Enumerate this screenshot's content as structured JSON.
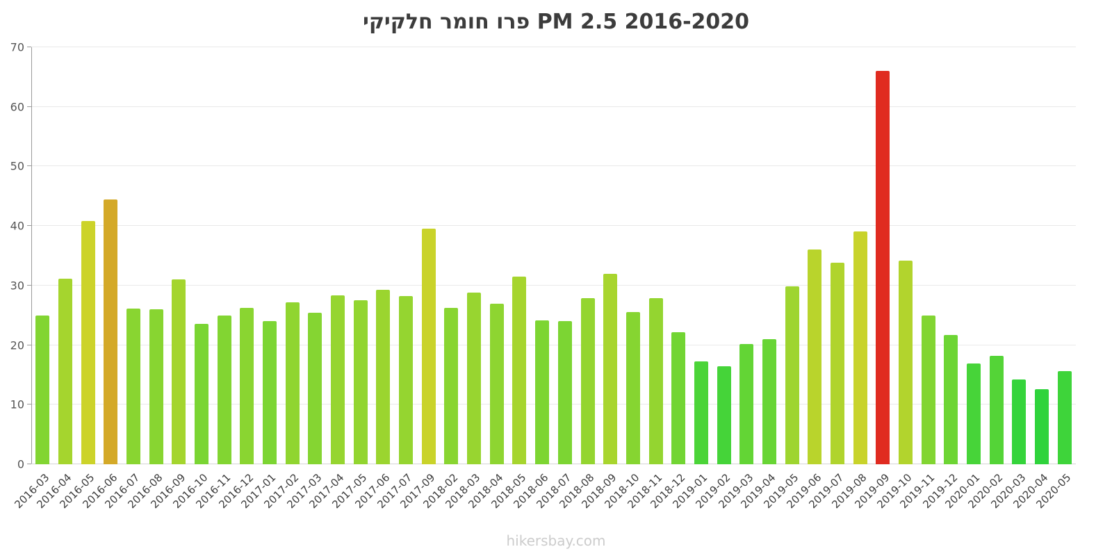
{
  "watermark": "hikersbay.com",
  "chart_data": {
    "type": "bar",
    "title": "פרו חומר חלקיקי PM 2.5 2016-2020",
    "xlabel": "",
    "ylabel": "",
    "ylim": [
      0,
      70
    ],
    "yticks": [
      0,
      10,
      20,
      30,
      40,
      50,
      60,
      70
    ],
    "grid": true,
    "legend": "none",
    "highlight_color": "#e02b20",
    "categories": [
      "2016-03",
      "2016-04",
      "2016-05",
      "2016-06",
      "2016-07",
      "2016-08",
      "2016-09",
      "2016-10",
      "2016-11",
      "2016-12",
      "2017-01",
      "2017-02",
      "2017-03",
      "2017-04",
      "2017-05",
      "2017-06",
      "2017-07",
      "2017-09",
      "2018-02",
      "2018-03",
      "2018-04",
      "2018-05",
      "2018-06",
      "2018-07",
      "2018-08",
      "2018-09",
      "2018-10",
      "2018-11",
      "2018-12",
      "2019-01",
      "2019-02",
      "2019-03",
      "2019-04",
      "2019-05",
      "2019-06",
      "2019-07",
      "2019-08",
      "2019-09",
      "2019-10",
      "2019-11",
      "2019-12",
      "2020-01",
      "2020-02",
      "2020-03",
      "2020-04",
      "2020-05"
    ],
    "values": [
      25.0,
      31.2,
      40.8,
      44.5,
      26.1,
      26.0,
      31.0,
      23.6,
      25.0,
      26.3,
      24.0,
      27.2,
      25.4,
      28.4,
      27.5,
      29.3,
      28.2,
      39.5,
      26.2,
      28.8,
      26.9,
      31.5,
      24.2,
      24.0,
      27.9,
      32.0,
      25.6,
      27.9,
      22.2,
      17.3,
      16.5,
      20.2,
      21.0,
      29.9,
      36.0,
      33.8,
      39.1,
      66.0,
      34.2,
      25.0,
      21.7,
      16.9,
      18.2,
      14.2,
      12.6,
      15.6
    ],
    "colors": [
      "#82d532",
      "#a5d52e",
      "#ccd32a",
      "#d4a928",
      "#89d531",
      "#88d531",
      "#a4d52e",
      "#7ad533",
      "#82d532",
      "#8ad531",
      "#7cd533",
      "#90d530",
      "#85d532",
      "#96d530",
      "#92d530",
      "#9bd52f",
      "#95d530",
      "#c9d32a",
      "#89d531",
      "#98d530",
      "#8ed531",
      "#a6d52e",
      "#7dd532",
      "#7cd533",
      "#94d530",
      "#a8d52e",
      "#86d531",
      "#94d530",
      "#72d533",
      "#4bd438",
      "#45d439",
      "#63d535",
      "#68d535",
      "#9ed52f",
      "#b9d42c",
      "#b0d42d",
      "#c8d32b",
      "#e02b20",
      "#b2d42d",
      "#82d532",
      "#6dd534",
      "#47d439",
      "#54d437",
      "#35d43b",
      "#2fd33c",
      "#3ed43a"
    ]
  }
}
